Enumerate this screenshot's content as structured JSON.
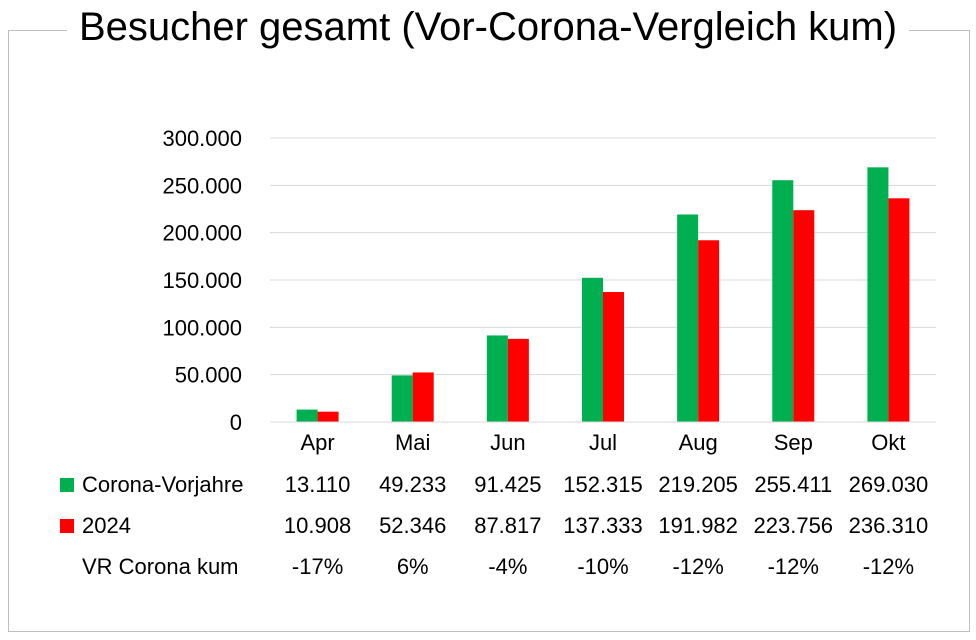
{
  "chart_data": {
    "type": "bar",
    "title": "Besucher gesamt (Vor-Corona-Vergleich kum)",
    "categories": [
      "Apr",
      "Mai",
      "Jun",
      "Jul",
      "Aug",
      "Sep",
      "Okt"
    ],
    "series": [
      {
        "name": "Corona-Vorjahre",
        "color": "#00b050",
        "values": [
          13110,
          49233,
          91425,
          152315,
          219205,
          255411,
          269030
        ],
        "labels": [
          "13.110",
          "49.233",
          "91.425",
          "152.315",
          "219.205",
          "255.411",
          "269.030"
        ]
      },
      {
        "name": "2024",
        "color": "#ff0000",
        "values": [
          10908,
          52346,
          87817,
          137333,
          191982,
          223756,
          236310
        ],
        "labels": [
          "10.908",
          "52.346",
          "87.817",
          "137.333",
          "191.982",
          "223.756",
          "236.310"
        ]
      }
    ],
    "table_extra_row": {
      "name": "VR Corona kum",
      "values": [
        "-17%",
        "6%",
        "-4%",
        "-10%",
        "-12%",
        "-12%",
        "-12%"
      ]
    },
    "ylim": [
      0,
      300000
    ],
    "yticks": [
      0,
      50000,
      100000,
      150000,
      200000,
      250000,
      300000
    ],
    "ytick_labels": [
      "0",
      "50.000",
      "100.000",
      "150.000",
      "200.000",
      "250.000",
      "300.000"
    ],
    "grid": true,
    "legend": "data table below chart",
    "gridline_color": "#d9d9d9"
  }
}
